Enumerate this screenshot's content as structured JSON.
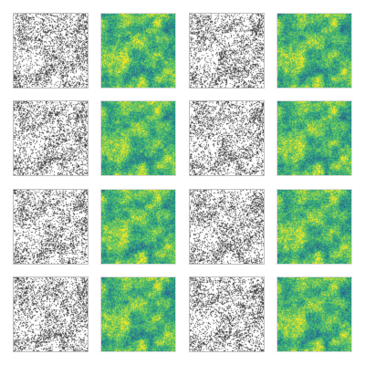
{
  "figure": {
    "rows": 4,
    "pairs_per_row": 2,
    "panels": [
      {
        "row": 0,
        "pair": 0,
        "left_style": "grayscale-stipple",
        "right_style": "viridis-heatmap"
      },
      {
        "row": 0,
        "pair": 1,
        "left_style": "grayscale-stipple",
        "right_style": "viridis-heatmap"
      },
      {
        "row": 1,
        "pair": 0,
        "left_style": "grayscale-stipple",
        "right_style": "viridis-heatmap"
      },
      {
        "row": 1,
        "pair": 1,
        "left_style": "grayscale-stipple",
        "right_style": "viridis-heatmap"
      },
      {
        "row": 2,
        "pair": 0,
        "left_style": "grayscale-stipple",
        "right_style": "viridis-heatmap"
      },
      {
        "row": 2,
        "pair": 1,
        "left_style": "grayscale-stipple",
        "right_style": "viridis-heatmap"
      },
      {
        "row": 3,
        "pair": 0,
        "left_style": "grayscale-stipple",
        "right_style": "viridis-heatmap"
      },
      {
        "row": 3,
        "pair": 1,
        "left_style": "grayscale-stipple",
        "right_style": "viridis-heatmap"
      }
    ]
  },
  "colors": {
    "background": "#ffffff",
    "gray_ink": "#000000",
    "viridis": [
      "#440154",
      "#3b528b",
      "#21918c",
      "#5ec962",
      "#fde725"
    ]
  }
}
